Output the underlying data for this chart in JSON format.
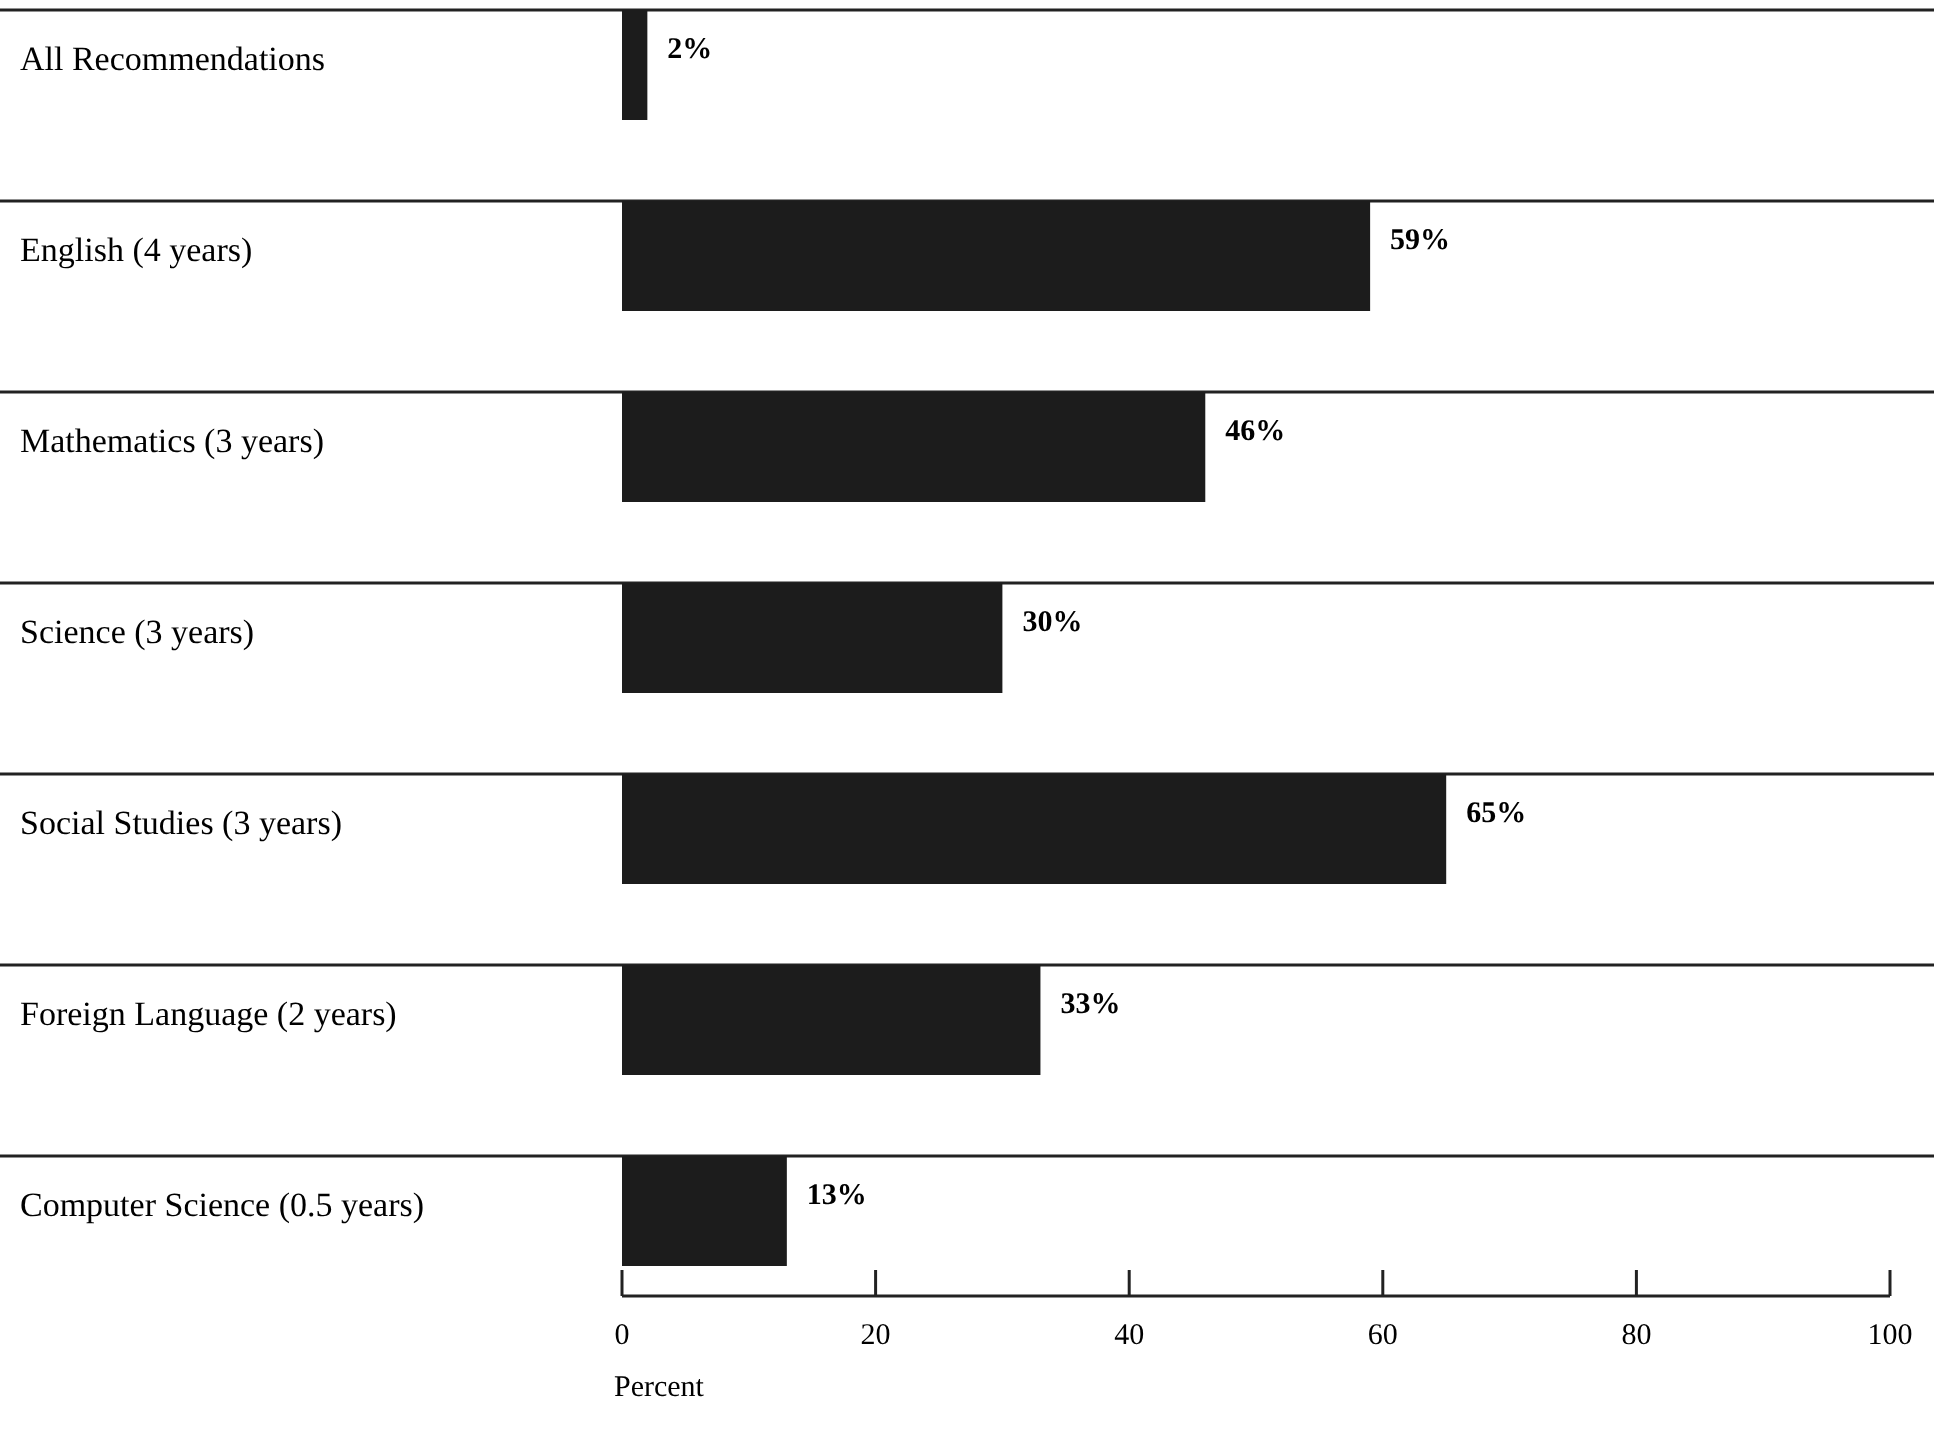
{
  "chart_data": {
    "type": "bar",
    "orientation": "horizontal",
    "categories": [
      "All Recommendations",
      "English (4 years)",
      "Mathematics (3 years)",
      "Science (3 years)",
      "Social Studies (3 years)",
      "Foreign Language (2 years)",
      "Computer Science (0.5 years)"
    ],
    "values": [
      2,
      59,
      46,
      30,
      65,
      33,
      13
    ],
    "color": "#1c1c1c",
    "data_labels": true,
    "value_labels": [
      "2%",
      "59%",
      "46%",
      "30%",
      "65%",
      "33%",
      "13%"
    ],
    "xlim": [
      0,
      100
    ],
    "xticks": [
      0,
      20,
      40,
      60,
      80,
      100
    ],
    "xlabel": "Percent",
    "grid": "y"
  }
}
